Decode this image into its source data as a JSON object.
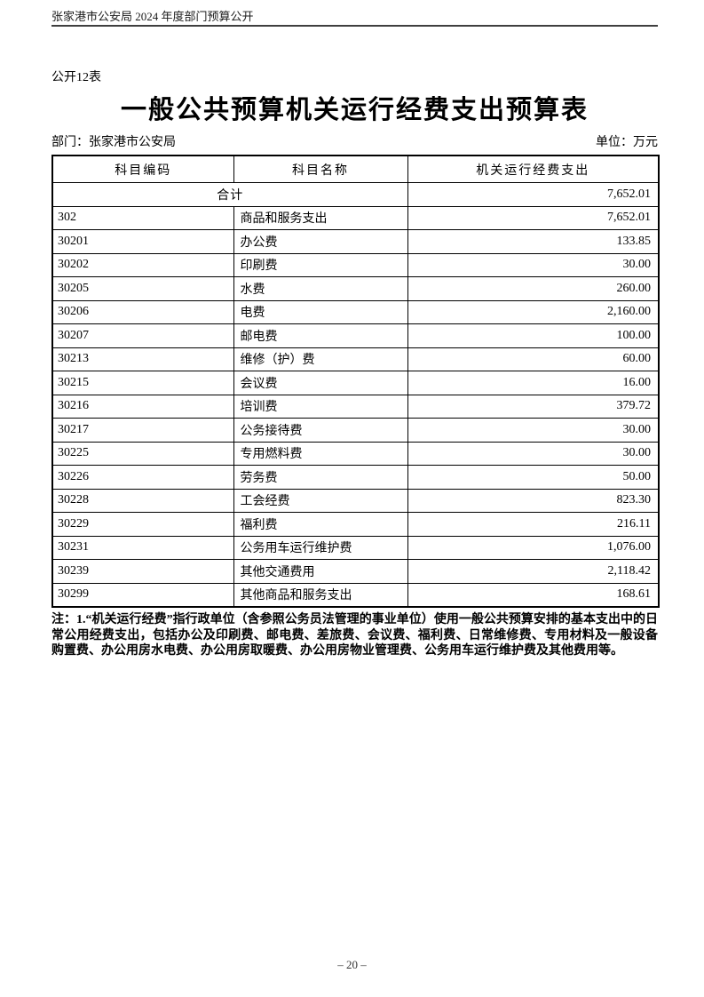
{
  "page": {
    "header": "张家港市公安局 2024 年度部门预算公开",
    "table_label": "公开12表",
    "title": "一般公共预算机关运行经费支出预算表",
    "department_label": "部门：张家港市公安局",
    "unit_label": "单位：万元",
    "page_number": "– 20 –"
  },
  "table": {
    "columns": [
      "科目编码",
      "科目名称",
      "机关运行经费支出"
    ],
    "total_row": {
      "label": "合计",
      "value": "7,652.01"
    },
    "rows": [
      {
        "code": "302",
        "name": "商品和服务支出",
        "value": "7,652.01"
      },
      {
        "code": "30201",
        "name": "办公费",
        "value": "133.85"
      },
      {
        "code": "30202",
        "name": "印刷费",
        "value": "30.00"
      },
      {
        "code": "30205",
        "name": "水费",
        "value": "260.00"
      },
      {
        "code": "30206",
        "name": "电费",
        "value": "2,160.00"
      },
      {
        "code": "30207",
        "name": "邮电费",
        "value": "100.00"
      },
      {
        "code": "30213",
        "name": "维修（护）费",
        "value": "60.00"
      },
      {
        "code": "30215",
        "name": "会议费",
        "value": "16.00"
      },
      {
        "code": "30216",
        "name": "培训费",
        "value": "379.72"
      },
      {
        "code": "30217",
        "name": "公务接待费",
        "value": "30.00"
      },
      {
        "code": "30225",
        "name": "专用燃料费",
        "value": "30.00"
      },
      {
        "code": "30226",
        "name": "劳务费",
        "value": "50.00"
      },
      {
        "code": "30228",
        "name": "工会经费",
        "value": "823.30"
      },
      {
        "code": "30229",
        "name": "福利费",
        "value": "216.11"
      },
      {
        "code": "30231",
        "name": "公务用车运行维护费",
        "value": "1,076.00"
      },
      {
        "code": "30239",
        "name": "其他交通费用",
        "value": "2,118.42"
      },
      {
        "code": "30299",
        "name": "其他商品和服务支出",
        "value": "168.61"
      }
    ]
  },
  "note": "注：1.“机关运行经费”指行政单位（含参照公务员法管理的事业单位）使用一般公共预算安排的基本支出中的日常公用经费支出，包括办公及印刷费、邮电费、差旅费、会议费、福利费、日常维修费、专用材料及一般设备购置费、办公用房水电费、办公用房取暖费、办公用房物业管理费、公务用车运行维护费及其他费用等。"
}
